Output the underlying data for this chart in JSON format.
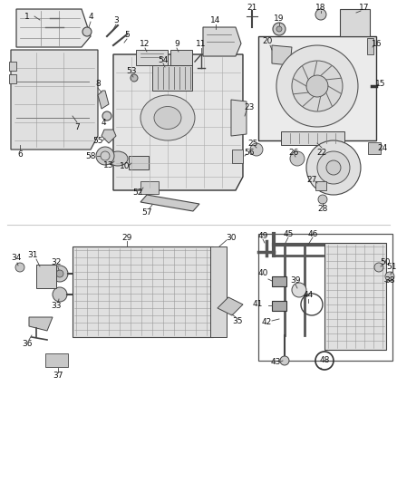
{
  "background_color": "#ffffff",
  "fig_width": 4.38,
  "fig_height": 5.33,
  "dpi": 100,
  "label_fontsize": 6.5,
  "line_color": "#333333",
  "text_color": "#111111"
}
